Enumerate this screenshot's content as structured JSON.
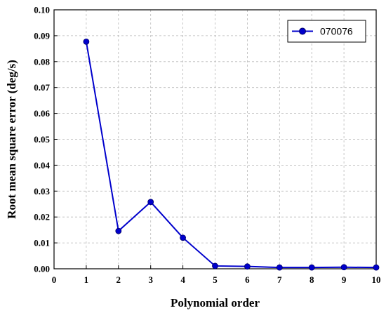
{
  "chart_data": {
    "type": "line",
    "title": "",
    "xlabel": "Polynomial order",
    "ylabel": "Root mean square error (deg/s)",
    "xlim": [
      0,
      10
    ],
    "ylim": [
      0,
      0.1
    ],
    "x_ticks": [
      "0",
      "1",
      "2",
      "3",
      "4",
      "5",
      "6",
      "7",
      "8",
      "9",
      "10"
    ],
    "y_ticks": [
      "0.00",
      "0.01",
      "0.02",
      "0.03",
      "0.04",
      "0.05",
      "0.06",
      "0.07",
      "0.08",
      "0.09",
      "0.10"
    ],
    "grid": true,
    "legend_position": "top-right",
    "series": [
      {
        "name": "070076",
        "color": "#0000cc",
        "marker": "circle",
        "x": [
          1,
          2,
          3,
          4,
          5,
          6,
          7,
          8,
          9,
          10
        ],
        "y": [
          0.0877,
          0.0146,
          0.0258,
          0.012,
          0.0011,
          0.0009,
          0.0005,
          0.0005,
          0.0006,
          0.0005
        ]
      }
    ]
  }
}
